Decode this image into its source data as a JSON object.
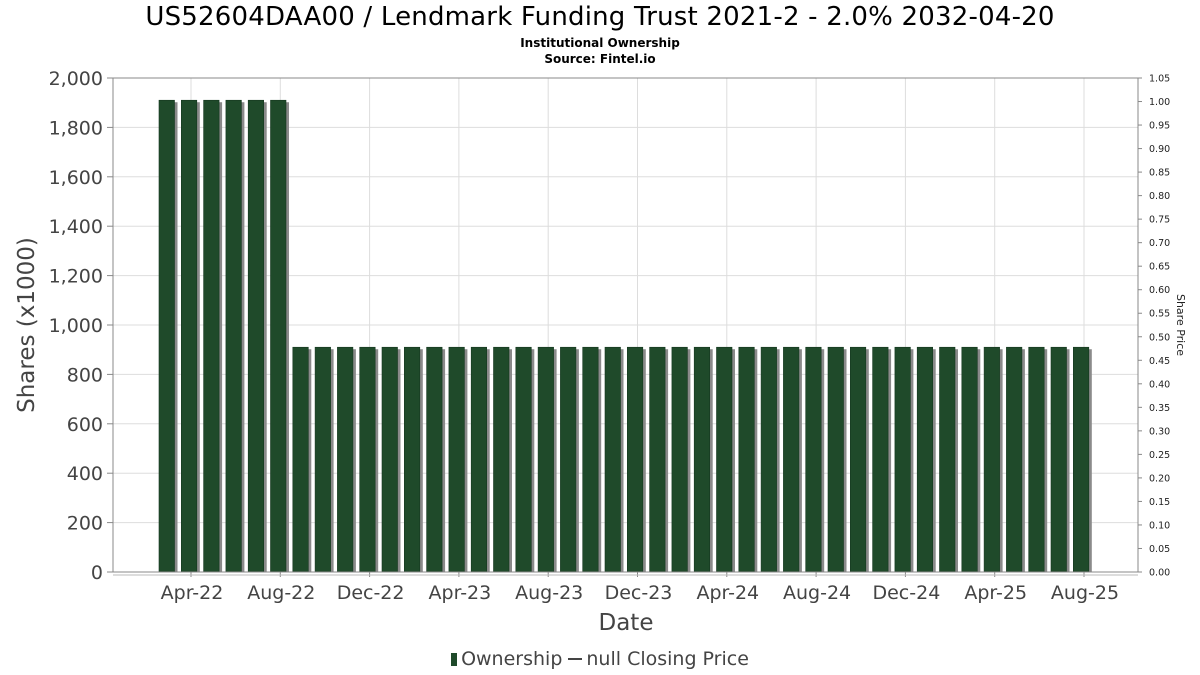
{
  "header": {
    "title": "US52604DAA00 / Lendmark Funding Trust 2021-2 - 2.0% 2032-04-20",
    "subtitle_1": "Institutional Ownership",
    "subtitle_2": "Source: Fintel.io"
  },
  "legend": {
    "ownership_label": "Ownership",
    "price_label": "null Closing Price"
  },
  "colors": {
    "bar_fill": "#1f4a2a",
    "bar_shadow": "#8a8a8a",
    "grid": "#dddddd"
  },
  "chart_data": {
    "type": "bar",
    "xlabel": "Date",
    "ylabel": "Shares (x1000)",
    "y2label": "Share Price",
    "ylim": [
      0,
      2000
    ],
    "y2lim": [
      0,
      1.05
    ],
    "yticks": [
      "0",
      "200",
      "400",
      "600",
      "800",
      "1,000",
      "1,200",
      "1,400",
      "1,600",
      "1,800",
      "2,000"
    ],
    "y2ticks": [
      "0.00",
      "0.05",
      "0.10",
      "0.15",
      "0.20",
      "0.25",
      "0.30",
      "0.35",
      "0.40",
      "0.45",
      "0.50",
      "0.55",
      "0.60",
      "0.65",
      "0.70",
      "0.75",
      "0.80",
      "0.85",
      "0.90",
      "0.95",
      "1.00",
      "1.05"
    ],
    "xtick_labels": [
      "Apr-22",
      "Aug-22",
      "Dec-22",
      "Apr-23",
      "Aug-23",
      "Dec-23",
      "Apr-24",
      "Aug-24",
      "Dec-24",
      "Apr-25",
      "Aug-25"
    ],
    "grid": true,
    "legend_position": "bottom",
    "series": [
      {
        "name": "Ownership",
        "values": [
          1910,
          1910,
          1910,
          1910,
          1910,
          1910,
          910,
          910,
          910,
          910,
          910,
          910,
          910,
          910,
          910,
          910,
          910,
          910,
          910,
          910,
          910,
          910,
          910,
          910,
          910,
          910,
          910,
          910,
          910,
          910,
          910,
          910,
          910,
          910,
          910,
          910,
          910,
          910,
          910,
          910,
          910,
          910
        ]
      }
    ]
  }
}
